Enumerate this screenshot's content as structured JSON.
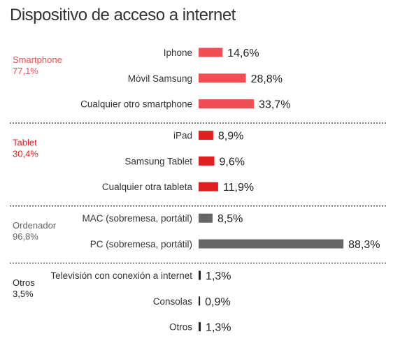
{
  "chart_data": {
    "type": "bar",
    "orientation": "horizontal",
    "title": "Dispositivo de acceso a internet",
    "xlim": [
      0,
      100
    ],
    "grid": false,
    "legend": "none",
    "groups": [
      {
        "name": "Smartphone",
        "total": "77,1%",
        "color": "#f04e54",
        "items": [
          {
            "label": "Iphone",
            "value": 14.6,
            "display": "14,6%"
          },
          {
            "label": "Móvil Samsung",
            "value": 28.8,
            "display": "28,8%"
          },
          {
            "label": "Cualquier otro smartphone",
            "value": 33.7,
            "display": "33,7%"
          }
        ]
      },
      {
        "name": "Tablet",
        "total": "30,4%",
        "color": "#e02020",
        "items": [
          {
            "label": "iPad",
            "value": 8.9,
            "display": "8,9%"
          },
          {
            "label": "Samsung Tablet",
            "value": 9.6,
            "display": "9,6%"
          },
          {
            "label": "Cualquier otra tableta",
            "value": 11.9,
            "display": "11,9%"
          }
        ]
      },
      {
        "name": "Ordenador",
        "total": "96,8%",
        "color": "#666666",
        "items": [
          {
            "label": "MAC (sobremesa, portátil)",
            "value": 8.5,
            "display": "8,5%"
          },
          {
            "label": "PC (sobremesa, portátil)",
            "value": 88.3,
            "display": "88,3%"
          }
        ]
      },
      {
        "name": "Otros",
        "total": "3,5%",
        "color": "#222222",
        "items": [
          {
            "label": "Televisión con conexión a internet",
            "value": 1.3,
            "display": "1,3%"
          },
          {
            "label": "Consolas",
            "value": 0.9,
            "display": "0,9%"
          },
          {
            "label": "Otros",
            "value": 1.3,
            "display": "1,3%"
          }
        ]
      }
    ]
  }
}
